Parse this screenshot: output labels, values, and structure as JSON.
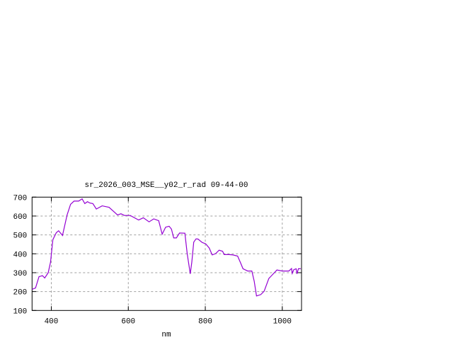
{
  "chart_data": {
    "type": "line",
    "title": "sr_2026_003_MSE__y02_r_rad 09-44-00",
    "xlabel": "nm",
    "ylabel": "",
    "xlim": [
      350,
      1050
    ],
    "ylim": [
      100,
      700
    ],
    "xticks": [
      400,
      600,
      800,
      1000
    ],
    "yticks": [
      100,
      200,
      300,
      400,
      500,
      600,
      700
    ],
    "grid": true,
    "line_color": "#9400d3",
    "series": [
      {
        "x": [
          350,
          359,
          368,
          377,
          383,
          392,
          398,
          404,
          413,
          419,
          429,
          441,
          450,
          459,
          471,
          480,
          487,
          494,
          500,
          508,
          517,
          532,
          550,
          572,
          581,
          590,
          605,
          627,
          639,
          654,
          666,
          679,
          688,
          697,
          706,
          712,
          718,
          725,
          733,
          747,
          753,
          761,
          765,
          770,
          776,
          781,
          792,
          801,
          810,
          818,
          827,
          836,
          845,
          849,
          862,
          872,
          884,
          892,
          898,
          910,
          921,
          927,
          933,
          944,
          953,
          965,
          986,
          1000,
          1017,
          1024,
          1026,
          1030,
          1036,
          1038,
          1042,
          1048
        ],
        "y": [
          212,
          219,
          279,
          284,
          272,
          300,
          356,
          475,
          512,
          522,
          497,
          606,
          662,
          679,
          679,
          691,
          666,
          676,
          669,
          666,
          637,
          654,
          646,
          606,
          612,
          603,
          603,
          579,
          591,
          569,
          585,
          575,
          504,
          541,
          546,
          531,
          484,
          484,
          510,
          509,
          400,
          294,
          356,
          462,
          479,
          478,
          460,
          453,
          431,
          394,
          401,
          419,
          413,
          396,
          396,
          394,
          388,
          350,
          321,
          309,
          309,
          256,
          177,
          184,
          202,
          269,
          314,
          309,
          309,
          322,
          296,
          316,
          321,
          294,
          321,
          321
        ]
      }
    ]
  }
}
